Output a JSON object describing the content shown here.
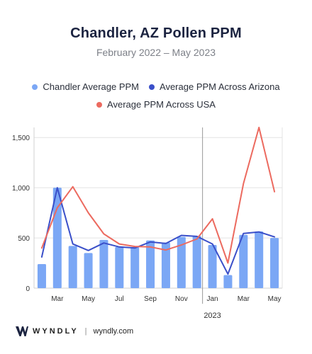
{
  "title": "Chandler, AZ Pollen PPM",
  "subtitle": "February 2022 – May 2023",
  "colors": {
    "bar": "#7ba7f5",
    "arizona": "#3a4fc9",
    "usa": "#ec6a5f"
  },
  "legend": [
    {
      "label": "Chandler Average PPM",
      "color": "#7ba7f5"
    },
    {
      "label": "Average PPM Across Arizona",
      "color": "#3a4fc9"
    },
    {
      "label": "Average PPM Across USA",
      "color": "#ec6a5f"
    }
  ],
  "footer": {
    "brand": "WYNDLY",
    "separator": "|",
    "site": "wyndly.com"
  },
  "chart_data": {
    "type": "bar",
    "x": [
      "2022-02",
      "2022-03",
      "2022-04",
      "2022-05",
      "2022-06",
      "2022-07",
      "2022-08",
      "2022-09",
      "2022-10",
      "2022-11",
      "2022-12",
      "2023-01",
      "2023-02",
      "2023-03",
      "2023-04",
      "2023-05"
    ],
    "tick_labels": [
      "Mar",
      "May",
      "Jul",
      "Sep",
      "Nov",
      "Jan",
      "Mar",
      "May"
    ],
    "tick_indices": [
      1,
      3,
      5,
      7,
      9,
      11,
      13,
      15
    ],
    "year_label": "2023",
    "year_label_index": 11,
    "year_divider_after_index": 10,
    "yticks": [
      0,
      500,
      1000,
      1500
    ],
    "ytick_labels": [
      "0",
      "500",
      "1,000",
      "1,500"
    ],
    "ylim": [
      0,
      1600
    ],
    "grid": "horizontal",
    "legend_position": "top",
    "series": [
      {
        "name": "Chandler Average PPM",
        "kind": "bar",
        "values": [
          240,
          1000,
          420,
          350,
          480,
          410,
          410,
          475,
          455,
          510,
          520,
          430,
          130,
          530,
          565,
          500
        ]
      },
      {
        "name": "Average PPM Across Arizona",
        "kind": "line",
        "values": [
          310,
          1000,
          440,
          375,
          450,
          410,
          400,
          460,
          445,
          525,
          515,
          440,
          140,
          545,
          560,
          510
        ]
      },
      {
        "name": "Average PPM Across USA",
        "kind": "line",
        "values": [
          400,
          800,
          1010,
          750,
          540,
          440,
          415,
          410,
          380,
          430,
          490,
          690,
          250,
          1040,
          1600,
          960
        ]
      }
    ]
  }
}
